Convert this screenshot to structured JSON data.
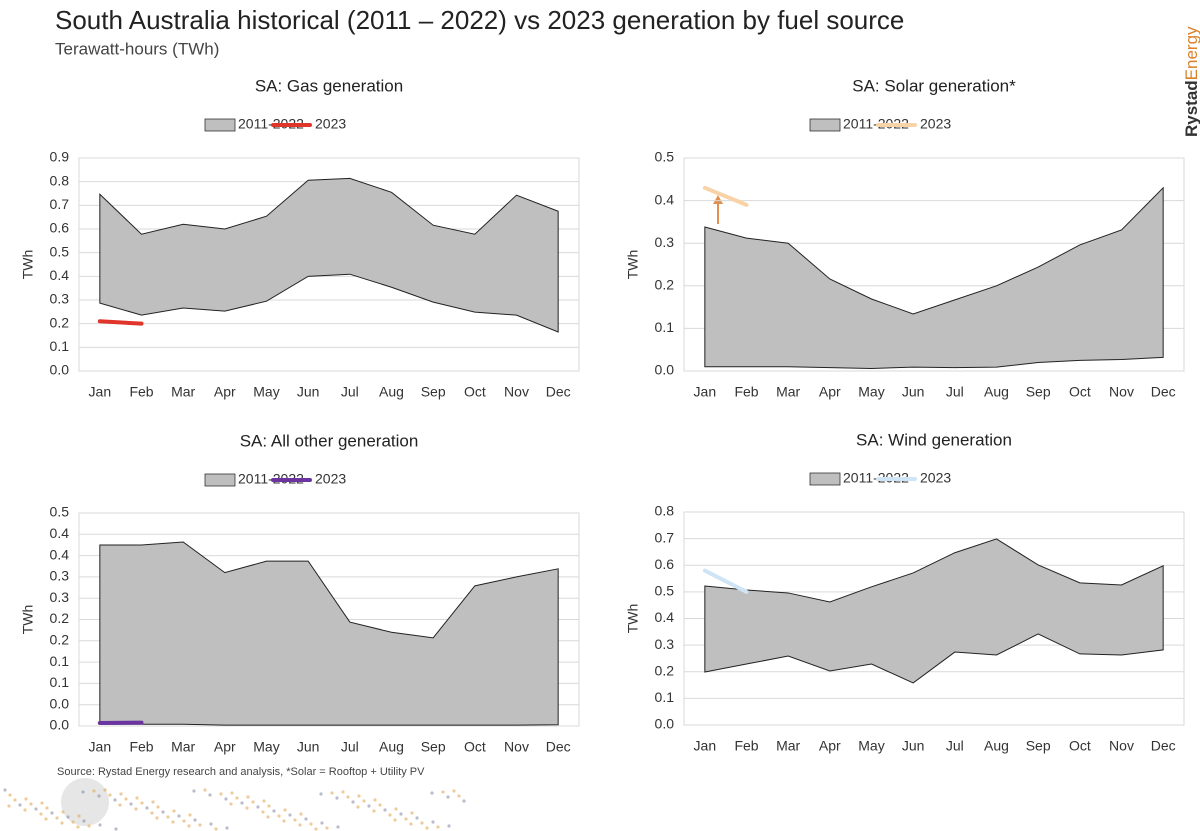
{
  "title": "South Australia historical (2011 – 2022) vs 2023 generation by fuel source",
  "subtitle": "Terawatt-hours (TWh)",
  "source": "Source: Rystad Energy research and analysis, *Solar = Rooftop + Utility PV",
  "brand": [
    "Rystad",
    "Energy"
  ],
  "chart_data": [
    {
      "type": "range_area",
      "title": "SA: Gas  generation",
      "y_label": "TWh",
      "categories": [
        "Jan",
        "Feb",
        "Mar",
        "Apr",
        "May",
        "Jun",
        "Jul",
        "Aug",
        "Sep",
        "Oct",
        "Nov",
        "Dec"
      ],
      "series": [
        {
          "name": "2011-2022",
          "color": "#bfbfbf",
          "high": [
            0.747,
            0.578,
            0.62,
            0.6,
            0.654,
            0.806,
            0.814,
            0.755,
            0.616,
            0.578,
            0.743,
            0.675
          ],
          "low": [
            0.287,
            0.236,
            0.266,
            0.253,
            0.295,
            0.4,
            0.409,
            0.354,
            0.291,
            0.249,
            0.236,
            0.165
          ]
        },
        {
          "name": "2023",
          "color": "#e0352b",
          "values": [
            0.21,
            0.2,
            null,
            null,
            null,
            null,
            null,
            null,
            null,
            null,
            null,
            null
          ]
        }
      ],
      "ylim": [
        0,
        0.9
      ],
      "yticks": [
        {
          "value": 0,
          "label": "0.0"
        },
        0.1,
        0.2,
        0.3,
        0.4,
        0.5,
        0.6,
        0.7,
        0.8,
        0.9
      ],
      "grid": true
    },
    {
      "type": "range_area",
      "title": "SA: Solar generation*",
      "y_label": "TWh",
      "categories": [
        "Jan",
        "Feb",
        "Mar",
        "Apr",
        "May",
        "Jun",
        "Jul",
        "Aug",
        "Sep",
        "Oct",
        "Nov",
        "Dec"
      ],
      "series": [
        {
          "name": "2011-2022",
          "color": "#bfbfbf",
          "high": [
            0.338,
            0.312,
            0.3,
            0.216,
            0.169,
            0.134,
            0.167,
            0.2,
            0.244,
            0.296,
            0.331,
            0.43
          ],
          "low": [
            0.01,
            0.01,
            0.01,
            0.008,
            0.006,
            0.009,
            0.008,
            0.009,
            0.02,
            0.025,
            0.027,
            0.032
          ]
        },
        {
          "name": "2023",
          "color": "#f8d3a8",
          "values": [
            0.43,
            0.39,
            null,
            null,
            null,
            null,
            null,
            null,
            null,
            null,
            null,
            null
          ]
        }
      ],
      "ylim": [
        0,
        0.5
      ],
      "yticks": [
        {
          "value": 0,
          "label": "0.0"
        },
        0.1,
        0.2,
        0.3,
        0.4,
        0.5
      ],
      "grid": true
    },
    {
      "type": "range_area",
      "title": "SA: All other  generation",
      "y_label": "TWh",
      "categories": [
        "Jan",
        "Feb",
        "Mar",
        "Apr",
        "May",
        "Jun",
        "Jul",
        "Aug",
        "Sep",
        "Oct",
        "Nov",
        "Dec"
      ],
      "series": [
        {
          "name": "2011-2022",
          "color": "#bfbfbf",
          "high": [
            0.425,
            0.425,
            0.432,
            0.36,
            0.387,
            0.387,
            0.244,
            0.22,
            0.207,
            0.329,
            0.35,
            0.369
          ],
          "low": [
            0.004,
            0.004,
            0.004,
            0.002,
            0.002,
            0.002,
            0.002,
            0.002,
            0.002,
            0.002,
            0.002,
            0.003
          ]
        },
        {
          "name": "2023",
          "color": "#6a35a0",
          "values": [
            0.007,
            0.008,
            null,
            null,
            null,
            null,
            null,
            null,
            null,
            null,
            null,
            null
          ]
        }
      ],
      "ylim": [
        0,
        0.5
      ],
      "yticks": [
        {
          "value": 0,
          "label": "0.0"
        },
        {
          "value": 0.05,
          "label": "0.0"
        },
        0.1,
        {
          "value": 0.15,
          "label": "0.1"
        },
        0.2,
        {
          "value": 0.25,
          "label": "0.2"
        },
        0.3,
        {
          "value": 0.35,
          "label": "0.3"
        },
        0.4,
        {
          "value": 0.45,
          "label": "0.4"
        },
        0.5
      ],
      "grid": true
    },
    {
      "type": "range_area",
      "title": "SA: Wind  generation",
      "y_label": "TWh",
      "categories": [
        "Jan",
        "Feb",
        "Mar",
        "Apr",
        "May",
        "Jun",
        "Jul",
        "Aug",
        "Sep",
        "Oct",
        "Nov",
        "Dec"
      ],
      "series": [
        {
          "name": "2011-2022",
          "color": "#bfbfbf",
          "high": [
            0.522,
            0.507,
            0.496,
            0.462,
            0.519,
            0.571,
            0.647,
            0.699,
            0.601,
            0.534,
            0.526,
            0.598
          ],
          "low": [
            0.199,
            0.229,
            0.259,
            0.203,
            0.229,
            0.158,
            0.274,
            0.263,
            0.342,
            0.267,
            0.263,
            0.282
          ]
        },
        {
          "name": "2023",
          "color": "#cfe4f5",
          "values": [
            0.58,
            0.5,
            null,
            null,
            null,
            null,
            null,
            null,
            null,
            null,
            null,
            null
          ]
        }
      ],
      "ylim": [
        0,
        0.8
      ],
      "yticks": [
        {
          "value": 0,
          "label": "0.0"
        },
        0.1,
        0.2,
        0.3,
        0.4,
        0.5,
        0.6,
        0.7,
        0.8
      ],
      "grid": true
    }
  ]
}
